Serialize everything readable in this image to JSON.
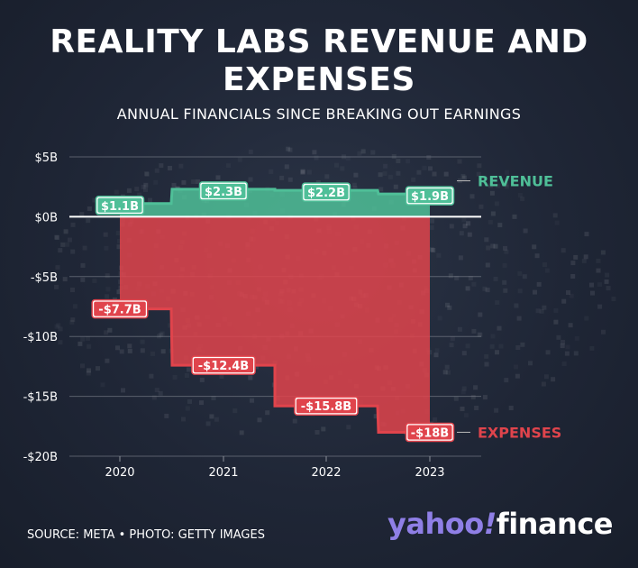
{
  "title": "REALITY LABS REVENUE AND EXPENSES",
  "subtitle": "ANNUAL FINANCIALS SINCE BREAKING OUT EARNINGS",
  "source": "SOURCE: META • PHOTO: GETTY IMAGES",
  "logo": {
    "part1": "yahoo",
    "bang": "!",
    "part2": "finance"
  },
  "colors": {
    "revenue": "#4fbf98",
    "expenses": "#e0444c",
    "background": "#1f2636",
    "logo": "#8f7fe6"
  },
  "chart_data": {
    "type": "area",
    "categories": [
      "2020",
      "2021",
      "2022",
      "2023"
    ],
    "ylim": [
      -20,
      5
    ],
    "yticks": [
      5,
      0,
      -5,
      -10,
      -15,
      -20
    ],
    "ytick_labels": [
      "$5B",
      "$0B",
      "-$5B",
      "-$10B",
      "-$15B",
      "-$20B"
    ],
    "grid": true,
    "series": [
      {
        "name": "REVENUE",
        "values": [
          1.1,
          2.3,
          2.2,
          1.9
        ],
        "labels": [
          "$1.1B",
          "$2.3B",
          "$2.2B",
          "$1.9B"
        ],
        "color": "#4fbf98"
      },
      {
        "name": "EXPENSES",
        "values": [
          -7.7,
          -12.4,
          -15.8,
          -18
        ],
        "labels": [
          "-$7.7B",
          "-$12.4B",
          "-$15.8B",
          "-$18B"
        ],
        "color": "#e0444c"
      }
    ]
  }
}
